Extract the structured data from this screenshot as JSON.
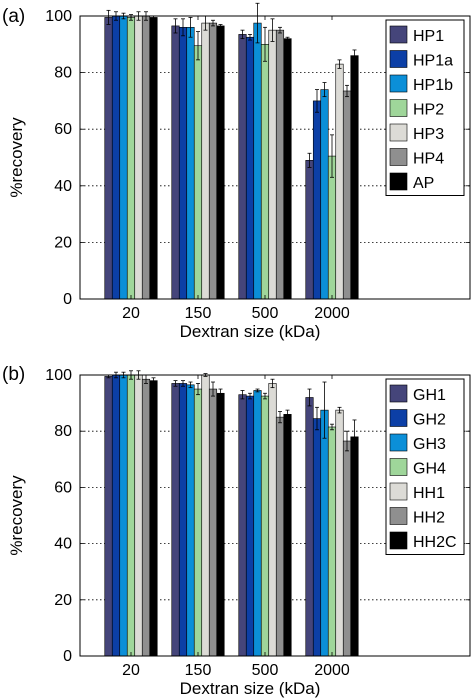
{
  "chart_data": [
    {
      "panel_label": "(a)",
      "type": "bar",
      "categories": [
        "20",
        "150",
        "500",
        "2000"
      ],
      "xlabel": "Dextran size (kDa)",
      "ylabel": "%recovery",
      "ylim": [
        0,
        100
      ],
      "yticks": [
        0,
        20,
        40,
        60,
        80,
        100
      ],
      "grid": "horizontal dotted",
      "legend_position": "top-right",
      "error_bars": true,
      "series": [
        {
          "name": "HP1",
          "color": "#45457a",
          "values": [
            99.5,
            96.5,
            93.5,
            49
          ],
          "errors": [
            2.5,
            2.5,
            1.5,
            2.5
          ]
        },
        {
          "name": "HP1a",
          "color": "#0c3fa6",
          "values": [
            100,
            96,
            92.5,
            70
          ],
          "errors": [
            1.5,
            3,
            1,
            4
          ]
        },
        {
          "name": "HP1b",
          "color": "#0b8fd8",
          "values": [
            100,
            96,
            97.5,
            74
          ],
          "errors": [
            1,
            3.5,
            7,
            2.5
          ]
        },
        {
          "name": "HP2",
          "color": "#9fd69a",
          "values": [
            99.5,
            89.5,
            90,
            50.5
          ],
          "errors": [
            1,
            5,
            6,
            7.5
          ]
        },
        {
          "name": "HP3",
          "color": "#dcdbd6",
          "values": [
            100,
            97.5,
            95,
            83
          ],
          "errors": [
            1.5,
            2.5,
            4,
            1.5
          ]
        },
        {
          "name": "HP4",
          "color": "#8f8f8f",
          "values": [
            100,
            97.5,
            95,
            73.5
          ],
          "errors": [
            1.5,
            1,
            1,
            2
          ]
        },
        {
          "name": "AP",
          "color": "#000000",
          "values": [
            99.5,
            96.5,
            92,
            86
          ],
          "errors": [
            0.5,
            0.5,
            0.5,
            2
          ]
        }
      ]
    },
    {
      "panel_label": "(b)",
      "type": "bar",
      "categories": [
        "20",
        "150",
        "500",
        "2000"
      ],
      "xlabel": "Dextran size (kDa)",
      "ylabel": "%recovery",
      "ylim": [
        0,
        100
      ],
      "yticks": [
        0,
        20,
        40,
        60,
        80,
        100
      ],
      "grid": "horizontal dotted",
      "legend_position": "top-right",
      "error_bars": true,
      "series": [
        {
          "name": "GH1",
          "color": "#45457a",
          "values": [
            99.5,
            97,
            93,
            92
          ],
          "errors": [
            0.5,
            1,
            1.5,
            3
          ]
        },
        {
          "name": "GH2",
          "color": "#0c3fa6",
          "values": [
            100,
            97,
            92.5,
            84.5
          ],
          "errors": [
            1,
            1,
            1,
            4
          ]
        },
        {
          "name": "GH3",
          "color": "#0b8fd8",
          "values": [
            100,
            96.5,
            94.5,
            87.5
          ],
          "errors": [
            1,
            1,
            0.5,
            10
          ]
        },
        {
          "name": "GH4",
          "color": "#9fd69a",
          "values": [
            100,
            95,
            92.5,
            81.5
          ],
          "errors": [
            1.5,
            2,
            1,
            1
          ]
        },
        {
          "name": "HH1",
          "color": "#dcdbd6",
          "values": [
            100,
            100,
            97,
            87.5
          ],
          "errors": [
            1.5,
            0.5,
            1.5,
            1
          ]
        },
        {
          "name": "HH2",
          "color": "#8f8f8f",
          "values": [
            98.5,
            95,
            85,
            76.5
          ],
          "errors": [
            1.5,
            2.5,
            2,
            3.5
          ]
        },
        {
          "name": "HH2C",
          "color": "#000000",
          "values": [
            98,
            93.5,
            86,
            78
          ],
          "errors": [
            1,
            1.5,
            1.5,
            6
          ]
        }
      ]
    }
  ]
}
